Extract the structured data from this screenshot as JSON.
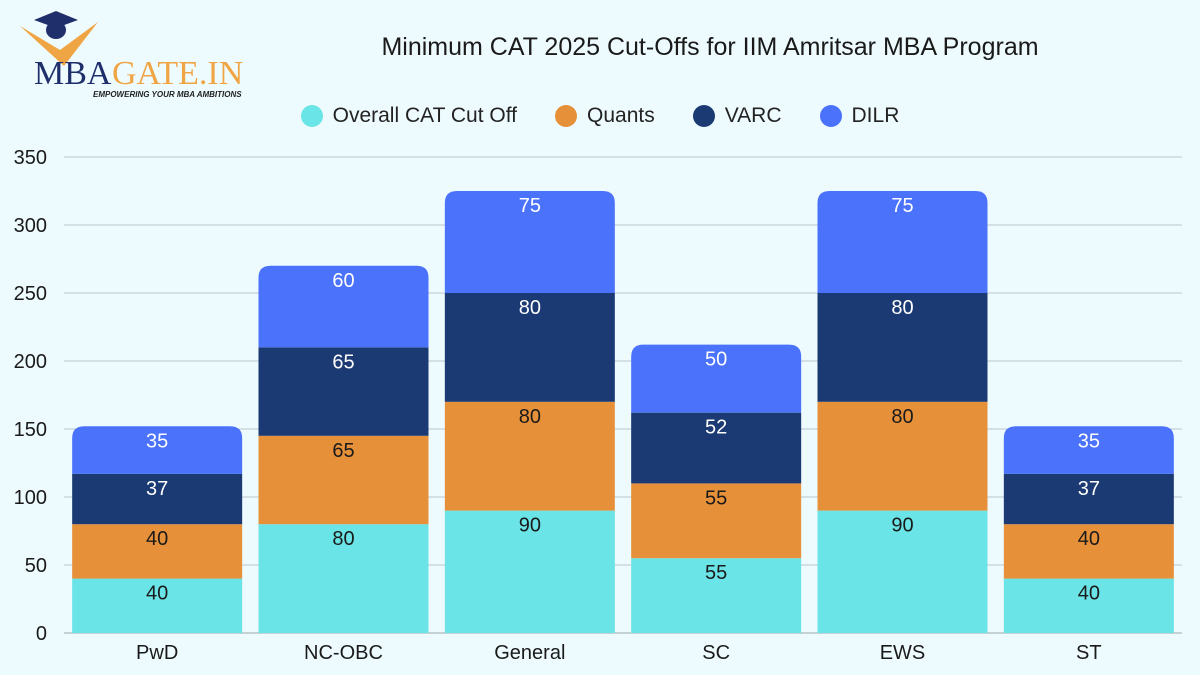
{
  "logo": {
    "text_main": "MBAGATE.IN",
    "tagline": "EMPOWERING YOUR MBA AMBITIONS"
  },
  "chart_data": {
    "type": "bar",
    "stacked": true,
    "title": "Minimum CAT 2025 Cut-Offs for IIM Amritsar MBA Program",
    "categories": [
      "PwD",
      "NC-OBC",
      "General",
      "SC",
      "EWS",
      "ST"
    ],
    "series": [
      {
        "name": "Overall CAT Cut Off",
        "color": "#6ae4e6",
        "label_color": "#1a1a1a",
        "values": [
          40,
          80,
          90,
          55,
          90,
          40
        ]
      },
      {
        "name": "Quants",
        "color": "#e6913a",
        "label_color": "#1a1a1a",
        "values": [
          40,
          65,
          80,
          55,
          80,
          40
        ]
      },
      {
        "name": "VARC",
        "color": "#1b3a73",
        "label_color": "#ffffff",
        "values": [
          37,
          65,
          80,
          52,
          80,
          37
        ]
      },
      {
        "name": "DILR",
        "color": "#4a72fb",
        "label_color": "#ffffff",
        "values": [
          35,
          60,
          75,
          50,
          75,
          35
        ]
      }
    ],
    "ylim": [
      0,
      350
    ],
    "yticks": [
      0,
      50,
      100,
      150,
      200,
      250,
      300,
      350
    ],
    "grid": true,
    "legend_position": "top",
    "xlabel": "",
    "ylabel": ""
  }
}
